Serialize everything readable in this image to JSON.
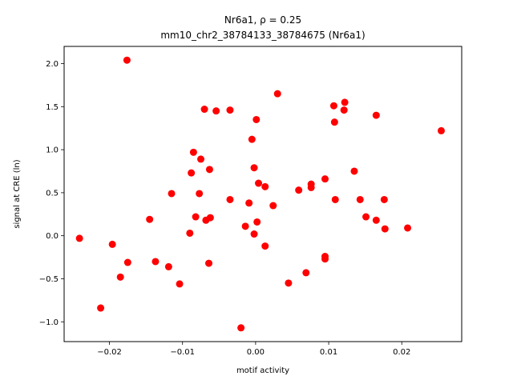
{
  "chart_data": {
    "type": "scatter",
    "title_line1": "Nr6a1, ρ = 0.25",
    "title_line2": "mm10_chr2_38784133_38784675 (Nr6a1)",
    "xlabel": "motif activity",
    "ylabel": "signal at CRE (ln)",
    "xlim": [
      -0.0262,
      0.0282
    ],
    "ylim": [
      -1.23,
      2.2
    ],
    "x_ticks": [
      -0.02,
      -0.01,
      0.0,
      0.01,
      0.02
    ],
    "x_tick_labels": [
      "−0.02",
      "−0.01",
      "0.00",
      "0.01",
      "0.02"
    ],
    "y_ticks": [
      -1.0,
      -0.5,
      0.0,
      0.5,
      1.0,
      1.5,
      2.0
    ],
    "y_tick_labels": [
      "−1.0",
      "−0.5",
      "0.0",
      "0.5",
      "1.0",
      "1.5",
      "2.0"
    ],
    "marker_color": "#ff0000",
    "grid": false,
    "points": [
      {
        "x": -0.0241,
        "y": -0.03
      },
      {
        "x": -0.0212,
        "y": -0.84
      },
      {
        "x": -0.0196,
        "y": -0.1
      },
      {
        "x": -0.0185,
        "y": -0.48
      },
      {
        "x": -0.0176,
        "y": 2.04
      },
      {
        "x": -0.0175,
        "y": -0.31
      },
      {
        "x": -0.0145,
        "y": 0.19
      },
      {
        "x": -0.0137,
        "y": -0.3
      },
      {
        "x": -0.0119,
        "y": -0.36
      },
      {
        "x": -0.0115,
        "y": 0.49
      },
      {
        "x": -0.0104,
        "y": -0.56
      },
      {
        "x": -0.009,
        "y": 0.03
      },
      {
        "x": -0.0088,
        "y": 0.73
      },
      {
        "x": -0.0085,
        "y": 0.97
      },
      {
        "x": -0.0082,
        "y": 0.22
      },
      {
        "x": -0.0077,
        "y": 0.49
      },
      {
        "x": -0.0075,
        "y": 0.89
      },
      {
        "x": -0.007,
        "y": 1.47
      },
      {
        "x": -0.0068,
        "y": 0.18
      },
      {
        "x": -0.0064,
        "y": -0.32
      },
      {
        "x": -0.0063,
        "y": 0.77
      },
      {
        "x": -0.0062,
        "y": 0.21
      },
      {
        "x": -0.0054,
        "y": 1.45
      },
      {
        "x": -0.0035,
        "y": 1.46
      },
      {
        "x": -0.0035,
        "y": 0.42
      },
      {
        "x": -0.002,
        "y": -1.07
      },
      {
        "x": -0.0014,
        "y": 0.11
      },
      {
        "x": -0.0009,
        "y": 0.38
      },
      {
        "x": -0.0005,
        "y": 1.12
      },
      {
        "x": -0.0002,
        "y": 0.02
      },
      {
        "x": -0.0002,
        "y": 0.79
      },
      {
        "x": 0.0001,
        "y": 1.35
      },
      {
        "x": 0.0002,
        "y": 0.16
      },
      {
        "x": 0.0004,
        "y": 0.61
      },
      {
        "x": 0.0013,
        "y": 0.57
      },
      {
        "x": 0.0013,
        "y": -0.12
      },
      {
        "x": 0.0024,
        "y": 0.35
      },
      {
        "x": 0.003,
        "y": 1.65
      },
      {
        "x": 0.0045,
        "y": -0.55
      },
      {
        "x": 0.0059,
        "y": 0.53
      },
      {
        "x": 0.0069,
        "y": -0.43
      },
      {
        "x": 0.0076,
        "y": 0.6
      },
      {
        "x": 0.0076,
        "y": 0.56
      },
      {
        "x": 0.0095,
        "y": 0.66
      },
      {
        "x": 0.0095,
        "y": -0.24
      },
      {
        "x": 0.0095,
        "y": -0.27
      },
      {
        "x": 0.0107,
        "y": 1.51
      },
      {
        "x": 0.0108,
        "y": 1.32
      },
      {
        "x": 0.0109,
        "y": 0.42
      },
      {
        "x": 0.0122,
        "y": 1.55
      },
      {
        "x": 0.0121,
        "y": 1.46
      },
      {
        "x": 0.0135,
        "y": 0.75
      },
      {
        "x": 0.0143,
        "y": 0.42
      },
      {
        "x": 0.0151,
        "y": 0.22
      },
      {
        "x": 0.0165,
        "y": 1.4
      },
      {
        "x": 0.0165,
        "y": 0.18
      },
      {
        "x": 0.0176,
        "y": 0.42
      },
      {
        "x": 0.0177,
        "y": 0.08
      },
      {
        "x": 0.0208,
        "y": 0.09
      },
      {
        "x": 0.0254,
        "y": 1.22
      }
    ]
  }
}
